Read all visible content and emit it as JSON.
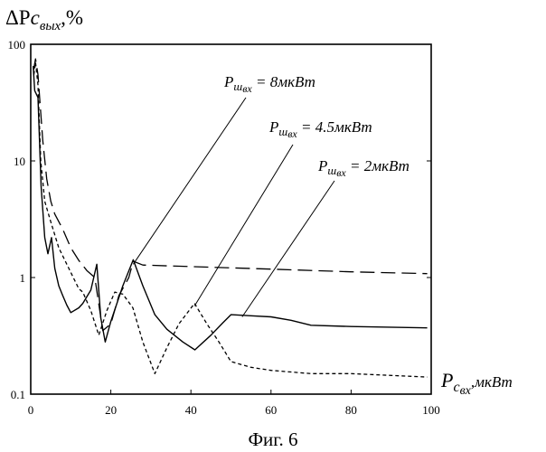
{
  "chart_data": {
    "type": "line",
    "y_scale": "log",
    "xlim": [
      0,
      100
    ],
    "ylim": [
      0.1,
      100
    ],
    "grid": false,
    "x_ticks": [
      {
        "value": 0,
        "label": "0"
      },
      {
        "value": 20,
        "label": "20"
      },
      {
        "value": 40,
        "label": "40"
      },
      {
        "value": 60,
        "label": "60"
      },
      {
        "value": 80,
        "label": "80"
      },
      {
        "value": 100,
        "label": "100"
      }
    ],
    "y_ticks": [
      {
        "value": 0.1,
        "label": "0.1"
      },
      {
        "value": 1,
        "label": "1"
      },
      {
        "value": 10,
        "label": "10"
      },
      {
        "value": 100,
        "label": "100"
      }
    ],
    "ylabel": {
      "prefix": "ΔP",
      "sub": "с",
      "subsub": "вых",
      "suffix": ",%"
    },
    "xlabel": {
      "main": "P",
      "sub": "с",
      "subsub": "вх",
      "unit": ",мкВт"
    },
    "caption": "Фиг. 6",
    "series": [
      {
        "id": "p8",
        "style": "dashed",
        "annotation": {
          "main": "P",
          "sub": "ш",
          "subsub": "вх",
          "rest": " = 8мкВт"
        },
        "anchor": [
          25.6,
          1.3
        ],
        "points": [
          [
            0.7,
            60
          ],
          [
            1.2,
            75
          ],
          [
            1.8,
            55
          ],
          [
            3,
            15
          ],
          [
            4,
            7
          ],
          [
            5,
            4.5
          ],
          [
            6,
            3.5
          ],
          [
            8,
            2.6
          ],
          [
            10,
            1.8
          ],
          [
            12,
            1.4
          ],
          [
            14,
            1.15
          ],
          [
            16,
            1.0
          ],
          [
            18,
            0.35
          ],
          [
            20,
            0.4
          ],
          [
            22,
            0.7
          ],
          [
            24.5,
            1.0
          ],
          [
            25.6,
            1.38
          ],
          [
            28,
            1.28
          ],
          [
            40,
            1.24
          ],
          [
            60,
            1.18
          ],
          [
            80,
            1.12
          ],
          [
            99,
            1.08
          ]
        ]
      },
      {
        "id": "p45",
        "style": "dotted",
        "annotation": {
          "main": "P",
          "sub": "ш",
          "subsub": "вх",
          "rest": " = 4.5мкВт"
        },
        "anchor": [
          40.9,
          0.57
        ],
        "points": [
          [
            0.8,
            55
          ],
          [
            1.2,
            70
          ],
          [
            1.8,
            45
          ],
          [
            2.5,
            10
          ],
          [
            3.5,
            4.5
          ],
          [
            5,
            3.0
          ],
          [
            7,
            1.8
          ],
          [
            9,
            1.3
          ],
          [
            12,
            0.8
          ],
          [
            13,
            0.75
          ],
          [
            15,
            0.52
          ],
          [
            17,
            0.32
          ],
          [
            19,
            0.52
          ],
          [
            21,
            0.75
          ],
          [
            23,
            0.72
          ],
          [
            25.5,
            0.55
          ],
          [
            28,
            0.28
          ],
          [
            31,
            0.15
          ],
          [
            34,
            0.25
          ],
          [
            37,
            0.4
          ],
          [
            40.9,
            0.6
          ],
          [
            44,
            0.4
          ],
          [
            47,
            0.28
          ],
          [
            50,
            0.19
          ],
          [
            55,
            0.17
          ],
          [
            60,
            0.16
          ],
          [
            70,
            0.15
          ],
          [
            80,
            0.15
          ],
          [
            99,
            0.14
          ]
        ]
      },
      {
        "id": "p2",
        "style": "solid",
        "annotation": {
          "main": "P",
          "sub": "ш",
          "subsub": "вх",
          "rest": " = 2мкВт"
        },
        "anchor": [
          52.8,
          0.46
        ],
        "points": [
          [
            0.6,
            65
          ],
          [
            1,
            40
          ],
          [
            1.8,
            35
          ],
          [
            2.6,
            6
          ],
          [
            3.5,
            2.2
          ],
          [
            4.3,
            1.6
          ],
          [
            5.2,
            2.2
          ],
          [
            6,
            1.2
          ],
          [
            7,
            0.85
          ],
          [
            8,
            0.7
          ],
          [
            9,
            0.58
          ],
          [
            10,
            0.5
          ],
          [
            12,
            0.55
          ],
          [
            13,
            0.6
          ],
          [
            15,
            0.78
          ],
          [
            16.5,
            1.3
          ],
          [
            17.5,
            0.45
          ],
          [
            18.6,
            0.28
          ],
          [
            20,
            0.42
          ],
          [
            23,
            0.85
          ],
          [
            25.6,
            1.42
          ],
          [
            28,
            0.85
          ],
          [
            31,
            0.48
          ],
          [
            34,
            0.36
          ],
          [
            38,
            0.28
          ],
          [
            41,
            0.24
          ],
          [
            45,
            0.32
          ],
          [
            48,
            0.41
          ],
          [
            50,
            0.48
          ],
          [
            55,
            0.47
          ],
          [
            60,
            0.46
          ],
          [
            65,
            0.43
          ],
          [
            70,
            0.39
          ],
          [
            80,
            0.38
          ],
          [
            99,
            0.37
          ]
        ]
      }
    ]
  }
}
